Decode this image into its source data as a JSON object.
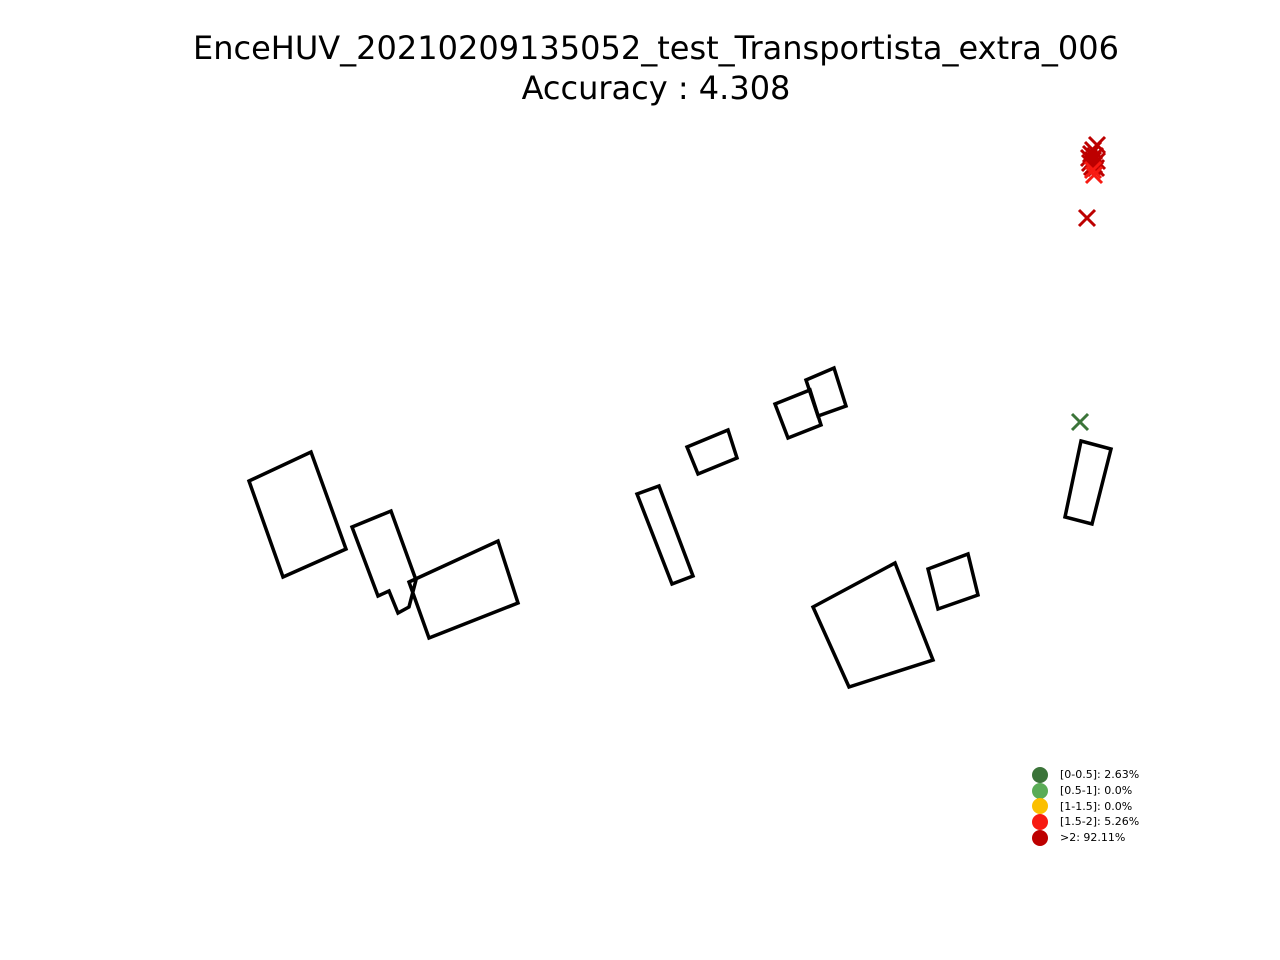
{
  "chart_data": {
    "type": "scatter",
    "title": "EnceHUV_20210209135052_test_Transportista_extra_006",
    "subtitle": "Accuracy : 4.308",
    "axes_visible": false,
    "obstacles": [
      {
        "name": "building-1",
        "points": [
          [
            249,
            481
          ],
          [
            311,
            452
          ],
          [
            346,
            549
          ],
          [
            283,
            577
          ]
        ]
      },
      {
        "name": "building-2",
        "points": [
          [
            352,
            527
          ],
          [
            391,
            511
          ],
          [
            416,
            580
          ],
          [
            409,
            607
          ],
          [
            398,
            613
          ],
          [
            389,
            591
          ],
          [
            378,
            596
          ]
        ]
      },
      {
        "name": "building-3",
        "points": [
          [
            409,
            582
          ],
          [
            498,
            541
          ],
          [
            518,
            603
          ],
          [
            429,
            638
          ]
        ]
      },
      {
        "name": "building-4",
        "points": [
          [
            637,
            494
          ],
          [
            659,
            486
          ],
          [
            693,
            576
          ],
          [
            672,
            584
          ]
        ]
      },
      {
        "name": "building-5",
        "points": [
          [
            687,
            447
          ],
          [
            728,
            430
          ],
          [
            737,
            458
          ],
          [
            698,
            474
          ]
        ]
      },
      {
        "name": "building-6",
        "points": [
          [
            775,
            404
          ],
          [
            810,
            390
          ],
          [
            821,
            425
          ],
          [
            788,
            438
          ]
        ]
      },
      {
        "name": "building-7",
        "points": [
          [
            806,
            380
          ],
          [
            834,
            368
          ],
          [
            846,
            406
          ],
          [
            818,
            416
          ]
        ]
      },
      {
        "name": "building-8",
        "points": [
          [
            1081,
            441
          ],
          [
            1111,
            449
          ],
          [
            1092,
            524
          ],
          [
            1065,
            517
          ]
        ]
      },
      {
        "name": "building-9",
        "points": [
          [
            813,
            607
          ],
          [
            895,
            563
          ],
          [
            933,
            660
          ],
          [
            849,
            687
          ]
        ]
      },
      {
        "name": "building-10",
        "points": [
          [
            928,
            569
          ],
          [
            968,
            554
          ],
          [
            978,
            595
          ],
          [
            938,
            609
          ]
        ]
      }
    ],
    "points": [
      {
        "x": 1080,
        "y": 422,
        "category": "[0-0.5]"
      },
      {
        "x": 1087,
        "y": 218,
        "category": ">2"
      },
      {
        "x": 1097,
        "y": 145,
        "category": ">2"
      },
      {
        "x": 1093,
        "y": 150,
        "category": ">2"
      },
      {
        "x": 1091,
        "y": 154,
        "category": ">2"
      },
      {
        "x": 1095,
        "y": 156,
        "category": ">2"
      },
      {
        "x": 1089,
        "y": 158,
        "category": ">2"
      },
      {
        "x": 1093,
        "y": 160,
        "category": ">2"
      },
      {
        "x": 1097,
        "y": 161,
        "category": ">2"
      },
      {
        "x": 1090,
        "y": 163,
        "category": ">2"
      },
      {
        "x": 1094,
        "y": 165,
        "category": ">2"
      },
      {
        "x": 1092,
        "y": 167,
        "category": ">2"
      },
      {
        "x": 1096,
        "y": 168,
        "category": ">2"
      },
      {
        "x": 1093,
        "y": 170,
        "category": "[1.5-2]"
      },
      {
        "x": 1094,
        "y": 175,
        "category": "[1.5-2]"
      }
    ],
    "legend_position": "lower-right",
    "legend": [
      {
        "label": "[0-0.5]: 2.63%",
        "color": "#3b7439"
      },
      {
        "label": "[0.5-1]: 0.0%",
        "color": "#5aac56"
      },
      {
        "label": "[1-1.5]: 0.0%",
        "color": "#fbbf00"
      },
      {
        "label": "[1.5-2]: 5.26%",
        "color": "#f71a12"
      },
      {
        "label": ">2: 92.11%",
        "color": "#bd0000"
      }
    ],
    "category_colors": {
      "[0-0.5]": "#3b7439",
      "[0.5-1]": "#5aac56",
      "[1-1.5]": "#fbbf00",
      "[1.5-2]": "#f71a12",
      ">2": "#bd0000"
    }
  }
}
